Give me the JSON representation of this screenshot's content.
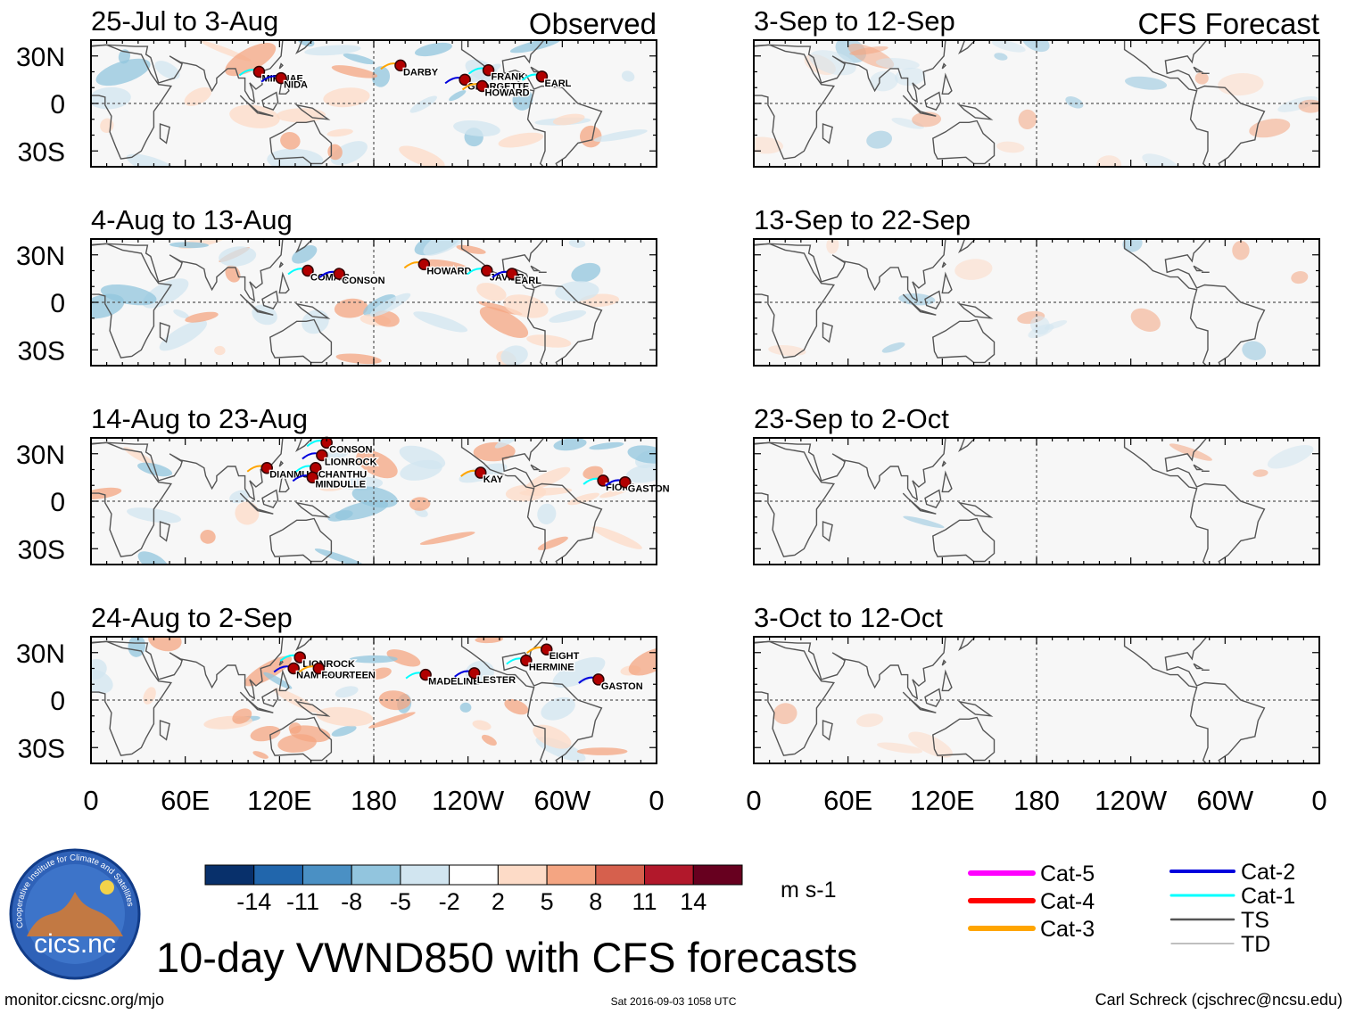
{
  "chart_data": {
    "type": "heatmap",
    "title": "10-day VWND850 with CFS forecasts",
    "variable": "VWND850",
    "units": "m s-1",
    "x_ticks": [
      "0",
      "60E",
      "120E",
      "180",
      "120W",
      "60W",
      "0"
    ],
    "y_ticks": [
      "30N",
      "0",
      "30S"
    ],
    "columns": [
      {
        "label": "Observed",
        "panels": [
          {
            "period": "25-Jul to 3-Aug",
            "storms": [
              {
                "name": "MIRINAE",
                "lon": 107,
                "lat": 20
              },
              {
                "name": "NIDA",
                "lon": 121,
                "lat": 16
              },
              {
                "name": "DARBY",
                "lon": 197,
                "lat": 24
              },
              {
                "name": "FRANK",
                "lon": 253,
                "lat": 21
              },
              {
                "name": "GEORGETTE",
                "lon": 238,
                "lat": 15
              },
              {
                "name": "HOWARD",
                "lon": 249,
                "lat": 11
              },
              {
                "name": "EARL",
                "lon": 287,
                "lat": 17
              }
            ]
          },
          {
            "period": "4-Aug to 13-Aug",
            "storms": [
              {
                "name": "COMAIS",
                "lon": 138,
                "lat": 20
              },
              {
                "name": "CONSON",
                "lon": 158,
                "lat": 18
              },
              {
                "name": "HOWARD",
                "lon": 212,
                "lat": 24
              },
              {
                "name": "JAVIER",
                "lon": 252,
                "lat": 20
              },
              {
                "name": "EARL",
                "lon": 268,
                "lat": 18
              }
            ]
          },
          {
            "period": "14-Aug to 23-Aug",
            "storms": [
              {
                "name": "CONSON",
                "lon": 150,
                "lat": 37
              },
              {
                "name": "LIONROCK",
                "lon": 147,
                "lat": 29
              },
              {
                "name": "DIANMU",
                "lon": 112,
                "lat": 21
              },
              {
                "name": "CHANTHU",
                "lon": 143,
                "lat": 21
              },
              {
                "name": "MINDULLE",
                "lon": 141,
                "lat": 15
              },
              {
                "name": "KAY",
                "lon": 248,
                "lat": 18
              },
              {
                "name": "FIONA",
                "lon": 326,
                "lat": 13
              },
              {
                "name": "GASTON",
                "lon": 340,
                "lat": 12
              }
            ]
          },
          {
            "period": "24-Aug to 2-Sep",
            "storms": [
              {
                "name": "LIONROCK",
                "lon": 133,
                "lat": 27
              },
              {
                "name": "NAMTHEUN",
                "lon": 129,
                "lat": 20
              },
              {
                "name": "FOURTEEN",
                "lon": 145,
                "lat": 20
              },
              {
                "name": "MADELINE",
                "lon": 213,
                "lat": 16
              },
              {
                "name": "LESTER",
                "lon": 244,
                "lat": 17
              },
              {
                "name": "EIGHT",
                "lon": 290,
                "lat": 32
              },
              {
                "name": "HERMINE",
                "lon": 277,
                "lat": 25
              },
              {
                "name": "GASTON",
                "lon": 323,
                "lat": 13
              }
            ]
          }
        ]
      },
      {
        "label": "CFS Forecast",
        "panels": [
          {
            "period": "3-Sep to 12-Sep",
            "storms": []
          },
          {
            "period": "13-Sep to 22-Sep",
            "storms": []
          },
          {
            "period": "23-Sep to 2-Oct",
            "storms": []
          },
          {
            "period": "3-Oct to 12-Oct",
            "storms": []
          }
        ]
      }
    ],
    "colorbar": {
      "levels": [
        "-14",
        "-11",
        "-8",
        "-5",
        "-2",
        "2",
        "5",
        "8",
        "11",
        "14"
      ],
      "colors": [
        "#08306b",
        "#2166ac",
        "#4a90c4",
        "#92c5de",
        "#d1e5f0",
        "#ffffff",
        "#fddbc7",
        "#f4a582",
        "#d6604d",
        "#b2182b",
        "#67001f"
      ]
    },
    "storm_legend": [
      {
        "label": "Cat-5",
        "color": "#ff00ff"
      },
      {
        "label": "Cat-4",
        "color": "#ff0000"
      },
      {
        "label": "Cat-3",
        "color": "#ffa500"
      },
      {
        "label": "Cat-2",
        "color": "#0000dd"
      },
      {
        "label": "Cat-1",
        "color": "#00ffff"
      },
      {
        "label": "TS",
        "color": "#555555"
      },
      {
        "label": "TD",
        "color": "#999999"
      }
    ]
  },
  "logo_text": "cics.nc",
  "logo_ring_text": "Cooperative Institute for Climate and Satellites",
  "footer": {
    "left": "monitor.cicsnc.org/mjo",
    "center": "Sat 2016-09-03 1058 UTC",
    "right": "Carl Schreck (cjschrec@ncsu.edu)"
  }
}
